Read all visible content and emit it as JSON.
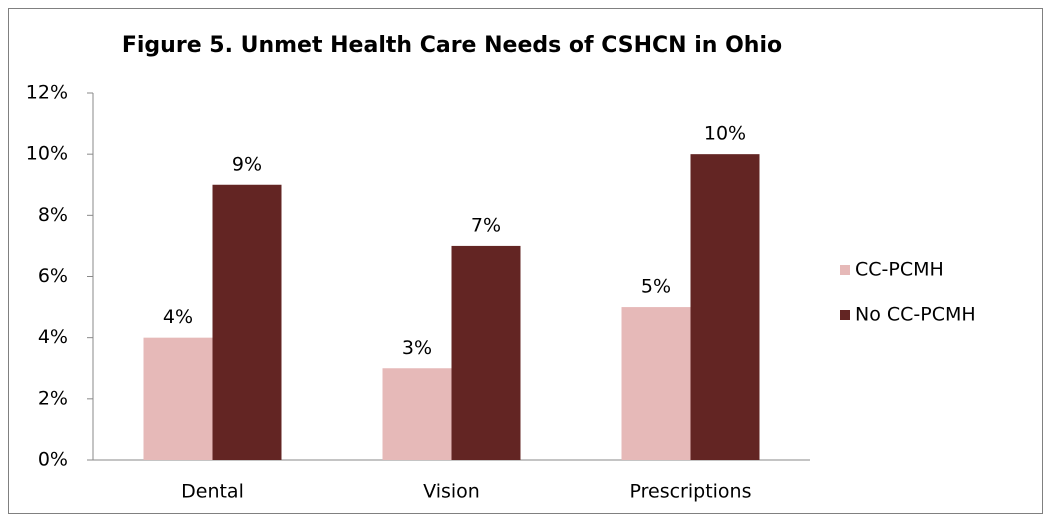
{
  "chart_data": {
    "type": "bar",
    "title": "Figure 5. Unmet Health Care Needs of CSHCN in Ohio",
    "categories": [
      "Dental",
      "Vision",
      "Prescriptions"
    ],
    "series": [
      {
        "name": "CC-PCMH",
        "color": "#e6b9b8",
        "values": [
          4,
          3,
          5
        ],
        "value_labels": [
          "4%",
          "3%",
          "5%"
        ]
      },
      {
        "name": "No CC-PCMH",
        "color": "#632523",
        "values": [
          9,
          7,
          10
        ],
        "value_labels": [
          "9%",
          "7%",
          "10%"
        ]
      }
    ],
    "ylim": [
      0,
      12
    ],
    "yticks": [
      {
        "value": 0,
        "label": "0%"
      },
      {
        "value": 2,
        "label": "2%"
      },
      {
        "value": 4,
        "label": "4%"
      },
      {
        "value": 6,
        "label": "6%"
      },
      {
        "value": 8,
        "label": "8%"
      },
      {
        "value": 10,
        "label": "10%"
      },
      {
        "value": 12,
        "label": "12%"
      }
    ],
    "grid": false,
    "legend": "right"
  }
}
